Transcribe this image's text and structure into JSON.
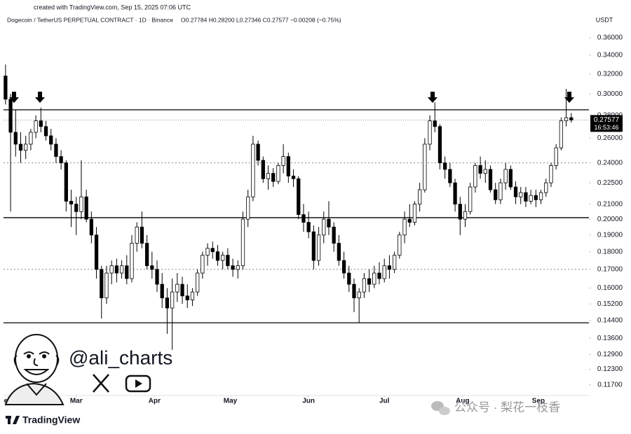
{
  "header": {
    "credit": "created with TradingView.com, Sep 15, 2025 07:06 UTC",
    "symbol": "Dogecoin / TetherUS PERPETUAL CONTRACT · 1D · Binance",
    "quote": "O0.27784  H0.28200  L0.27346  C0.27577  −0.00208 (−0.75%)",
    "currency": "USDT"
  },
  "watermark": {
    "handle": "@ali_charts",
    "wechat": "公众号 · 梨花一枝香",
    "brand": "TradingView"
  },
  "chart_data": {
    "type": "candlestick",
    "yscale": "log",
    "grid": false,
    "up_color": "#ffffff",
    "down_color": "#000000",
    "wick_color": "#000000",
    "ylim": [
      0.113,
      0.374
    ],
    "xlim": [
      -0.4,
      115.5
    ],
    "yticks": [
      {
        "value": 0.36,
        "label": "0.36000"
      },
      {
        "value": 0.34,
        "label": "0.34000"
      },
      {
        "value": 0.32,
        "label": "0.32000"
      },
      {
        "value": 0.3,
        "label": "0.30000"
      },
      {
        "value": 0.28,
        "label": "0.28000"
      },
      {
        "value": 0.26,
        "label": "0.26000"
      },
      {
        "value": 0.24,
        "label": "0.24000"
      },
      {
        "value": 0.225,
        "label": "0.22500"
      },
      {
        "value": 0.21,
        "label": "0.21000"
      },
      {
        "value": 0.2,
        "label": "0.20000"
      },
      {
        "value": 0.19,
        "label": "0.19000"
      },
      {
        "value": 0.18,
        "label": "0.18000"
      },
      {
        "value": 0.17,
        "label": "0.17000"
      },
      {
        "value": 0.16,
        "label": "0.16000"
      },
      {
        "value": 0.152,
        "label": "0.15200"
      },
      {
        "value": 0.144,
        "label": "0.14400"
      },
      {
        "value": 0.136,
        "label": "0.13600"
      },
      {
        "value": 0.129,
        "label": "0.12900"
      },
      {
        "value": 0.123,
        "label": "0.12300"
      },
      {
        "value": 0.117,
        "label": "0.11700"
      }
    ],
    "xticks": [
      {
        "value": 0.5,
        "label": "eb"
      },
      {
        "value": 14,
        "label": "Mar"
      },
      {
        "value": 29.5,
        "label": "Apr"
      },
      {
        "value": 44.5,
        "label": "May"
      },
      {
        "value": 60,
        "label": "Jun"
      },
      {
        "value": 75,
        "label": "Jul"
      },
      {
        "value": 90.5,
        "label": "Aug"
      },
      {
        "value": 105.5,
        "label": "Sep"
      }
    ],
    "levels": [
      {
        "value": 0.285,
        "style": "solid"
      },
      {
        "value": 0.201,
        "style": "solid"
      },
      {
        "value": 0.143,
        "style": "solid"
      },
      {
        "value": 0.24,
        "style": "dotted"
      },
      {
        "value": 0.17,
        "style": "dotted"
      }
    ],
    "last_price": {
      "value": 0.27577,
      "time": "16:53:46"
    },
    "candles": [
      [
        0.318,
        0.33,
        0.29,
        0.295
      ],
      [
        0.295,
        0.3,
        0.205,
        0.265
      ],
      [
        0.265,
        0.285,
        0.245,
        0.255
      ],
      [
        0.255,
        0.265,
        0.24,
        0.25
      ],
      [
        0.25,
        0.262,
        0.243,
        0.255
      ],
      [
        0.255,
        0.268,
        0.25,
        0.265
      ],
      [
        0.265,
        0.28,
        0.26,
        0.275
      ],
      [
        0.275,
        0.287,
        0.265,
        0.27
      ],
      [
        0.27,
        0.275,
        0.258,
        0.262
      ],
      [
        0.262,
        0.268,
        0.25,
        0.255
      ],
      [
        0.255,
        0.26,
        0.24,
        0.245
      ],
      [
        0.245,
        0.25,
        0.235,
        0.24
      ],
      [
        0.24,
        0.242,
        0.205,
        0.212
      ],
      [
        0.212,
        0.22,
        0.195,
        0.21
      ],
      [
        0.21,
        0.215,
        0.19,
        0.205
      ],
      [
        0.205,
        0.242,
        0.2,
        0.215
      ],
      [
        0.215,
        0.22,
        0.198,
        0.2
      ],
      [
        0.2,
        0.205,
        0.185,
        0.19
      ],
      [
        0.19,
        0.195,
        0.165,
        0.17
      ],
      [
        0.17,
        0.172,
        0.145,
        0.155
      ],
      [
        0.155,
        0.172,
        0.152,
        0.168
      ],
      [
        0.168,
        0.175,
        0.162,
        0.172
      ],
      [
        0.172,
        0.176,
        0.163,
        0.168
      ],
      [
        0.168,
        0.175,
        0.165,
        0.172
      ],
      [
        0.172,
        0.178,
        0.162,
        0.165
      ],
      [
        0.165,
        0.19,
        0.163,
        0.185
      ],
      [
        0.185,
        0.198,
        0.18,
        0.195
      ],
      [
        0.195,
        0.205,
        0.182,
        0.185
      ],
      [
        0.185,
        0.19,
        0.17,
        0.172
      ],
      [
        0.172,
        0.18,
        0.165,
        0.17
      ],
      [
        0.17,
        0.175,
        0.158,
        0.162
      ],
      [
        0.162,
        0.168,
        0.15,
        0.155
      ],
      [
        0.155,
        0.16,
        0.138,
        0.15
      ],
      [
        0.15,
        0.165,
        0.131,
        0.158
      ],
      [
        0.158,
        0.168,
        0.153,
        0.162
      ],
      [
        0.162,
        0.166,
        0.152,
        0.156
      ],
      [
        0.156,
        0.162,
        0.15,
        0.154
      ],
      [
        0.154,
        0.16,
        0.151,
        0.158
      ],
      [
        0.158,
        0.17,
        0.156,
        0.168
      ],
      [
        0.168,
        0.18,
        0.165,
        0.178
      ],
      [
        0.178,
        0.185,
        0.172,
        0.182
      ],
      [
        0.182,
        0.186,
        0.176,
        0.18
      ],
      [
        0.18,
        0.184,
        0.172,
        0.175
      ],
      [
        0.175,
        0.18,
        0.17,
        0.178
      ],
      [
        0.178,
        0.182,
        0.17,
        0.172
      ],
      [
        0.172,
        0.176,
        0.166,
        0.17
      ],
      [
        0.17,
        0.175,
        0.165,
        0.172
      ],
      [
        0.172,
        0.205,
        0.17,
        0.2
      ],
      [
        0.2,
        0.22,
        0.195,
        0.215
      ],
      [
        0.215,
        0.262,
        0.212,
        0.255
      ],
      [
        0.255,
        0.258,
        0.238,
        0.242
      ],
      [
        0.242,
        0.245,
        0.225,
        0.228
      ],
      [
        0.228,
        0.238,
        0.22,
        0.232
      ],
      [
        0.232,
        0.236,
        0.222,
        0.226
      ],
      [
        0.226,
        0.24,
        0.224,
        0.238
      ],
      [
        0.238,
        0.255,
        0.232,
        0.245
      ],
      [
        0.245,
        0.248,
        0.225,
        0.23
      ],
      [
        0.23,
        0.235,
        0.222,
        0.228
      ],
      [
        0.228,
        0.23,
        0.2,
        0.203
      ],
      [
        0.203,
        0.21,
        0.192,
        0.198
      ],
      [
        0.198,
        0.205,
        0.188,
        0.192
      ],
      [
        0.192,
        0.196,
        0.17,
        0.175
      ],
      [
        0.175,
        0.195,
        0.172,
        0.19
      ],
      [
        0.19,
        0.205,
        0.185,
        0.2
      ],
      [
        0.2,
        0.212,
        0.19,
        0.195
      ],
      [
        0.195,
        0.198,
        0.18,
        0.185
      ],
      [
        0.185,
        0.19,
        0.172,
        0.175
      ],
      [
        0.175,
        0.18,
        0.165,
        0.168
      ],
      [
        0.168,
        0.172,
        0.158,
        0.162
      ],
      [
        0.162,
        0.165,
        0.148,
        0.155
      ],
      [
        0.155,
        0.16,
        0.143,
        0.158
      ],
      [
        0.158,
        0.168,
        0.155,
        0.165
      ],
      [
        0.165,
        0.17,
        0.158,
        0.162
      ],
      [
        0.162,
        0.172,
        0.16,
        0.168
      ],
      [
        0.168,
        0.174,
        0.162,
        0.165
      ],
      [
        0.165,
        0.176,
        0.163,
        0.172
      ],
      [
        0.172,
        0.178,
        0.165,
        0.17
      ],
      [
        0.17,
        0.18,
        0.168,
        0.178
      ],
      [
        0.178,
        0.192,
        0.176,
        0.19
      ],
      [
        0.19,
        0.205,
        0.185,
        0.2
      ],
      [
        0.2,
        0.21,
        0.195,
        0.198
      ],
      [
        0.198,
        0.212,
        0.196,
        0.21
      ],
      [
        0.21,
        0.225,
        0.205,
        0.22
      ],
      [
        0.22,
        0.26,
        0.218,
        0.255
      ],
      [
        0.255,
        0.28,
        0.25,
        0.275
      ],
      [
        0.275,
        0.292,
        0.265,
        0.27
      ],
      [
        0.27,
        0.272,
        0.235,
        0.24
      ],
      [
        0.24,
        0.245,
        0.228,
        0.235
      ],
      [
        0.235,
        0.24,
        0.222,
        0.225
      ],
      [
        0.225,
        0.228,
        0.205,
        0.21
      ],
      [
        0.21,
        0.215,
        0.19,
        0.2
      ],
      [
        0.2,
        0.21,
        0.195,
        0.205
      ],
      [
        0.205,
        0.225,
        0.203,
        0.222
      ],
      [
        0.222,
        0.24,
        0.218,
        0.238
      ],
      [
        0.238,
        0.245,
        0.228,
        0.232
      ],
      [
        0.232,
        0.242,
        0.225,
        0.235
      ],
      [
        0.235,
        0.238,
        0.218,
        0.22
      ],
      [
        0.22,
        0.225,
        0.21,
        0.213
      ],
      [
        0.213,
        0.228,
        0.21,
        0.225
      ],
      [
        0.225,
        0.24,
        0.22,
        0.235
      ],
      [
        0.235,
        0.238,
        0.22,
        0.222
      ],
      [
        0.222,
        0.226,
        0.21,
        0.215
      ],
      [
        0.215,
        0.222,
        0.21,
        0.218
      ],
      [
        0.218,
        0.222,
        0.208,
        0.212
      ],
      [
        0.212,
        0.22,
        0.21,
        0.216
      ],
      [
        0.216,
        0.22,
        0.208,
        0.213
      ],
      [
        0.213,
        0.22,
        0.21,
        0.218
      ],
      [
        0.218,
        0.228,
        0.215,
        0.225
      ],
      [
        0.225,
        0.24,
        0.222,
        0.238
      ],
      [
        0.238,
        0.255,
        0.235,
        0.252
      ],
      [
        0.252,
        0.278,
        0.25,
        0.275
      ],
      [
        0.275,
        0.305,
        0.27,
        0.27784
      ],
      [
        0.27784,
        0.282,
        0.27346,
        0.27577
      ]
    ]
  }
}
